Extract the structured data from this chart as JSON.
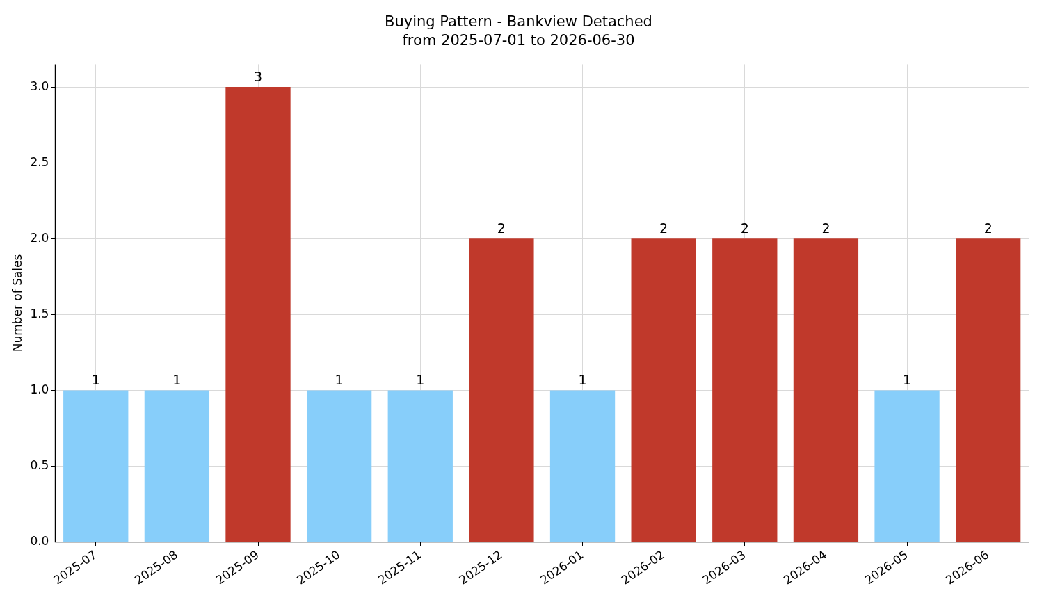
{
  "chart_data": {
    "type": "bar",
    "title": "Buying Pattern - Bankview Detached",
    "subtitle": "from 2025-07-01 to 2026-06-30",
    "ylabel": "Number of Sales",
    "categories": [
      "2025-07",
      "2025-08",
      "2025-09",
      "2025-10",
      "2025-11",
      "2025-12",
      "2026-01",
      "2026-02",
      "2026-03",
      "2026-04",
      "2026-05",
      "2026-06"
    ],
    "values": [
      1,
      1,
      3,
      1,
      1,
      2,
      1,
      2,
      2,
      2,
      1,
      2
    ],
    "colors": [
      "#87cefa",
      "#87cefa",
      "#c0392b",
      "#87cefa",
      "#87cefa",
      "#c0392b",
      "#87cefa",
      "#c0392b",
      "#c0392b",
      "#c0392b",
      "#87cefa",
      "#c0392b"
    ],
    "ylim": [
      0,
      3.15
    ],
    "yticks": [
      {
        "value": 0,
        "label": "0.0"
      },
      {
        "value": 0.5,
        "label": "0.5"
      },
      {
        "value": 1,
        "label": "1.0"
      },
      {
        "value": 1.5,
        "label": "1.5"
      },
      {
        "value": 2,
        "label": "2.0"
      },
      {
        "value": 2.5,
        "label": "2.5"
      },
      {
        "value": 3,
        "label": "3.0"
      }
    ],
    "grid": true,
    "data_labels": true,
    "legend": false
  }
}
